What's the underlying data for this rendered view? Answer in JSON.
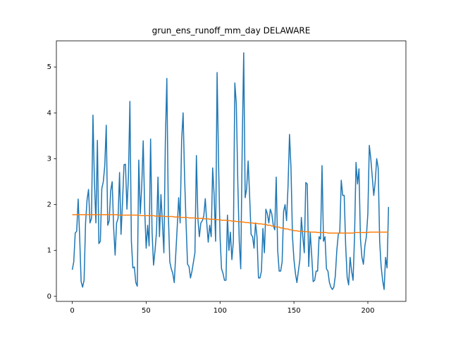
{
  "chart_data": {
    "type": "line",
    "title": "grun_ens_runoff_mm_day DELAWARE",
    "x": [
      0,
      1,
      2,
      3,
      4,
      5,
      6,
      7,
      8,
      9,
      10,
      11,
      12,
      13,
      14,
      15,
      16,
      17,
      18,
      19,
      20,
      21,
      22,
      23,
      24,
      25,
      26,
      27,
      28,
      29,
      30,
      31,
      32,
      33,
      34,
      35,
      36,
      37,
      38,
      39,
      40,
      41,
      42,
      43,
      44,
      45,
      46,
      47,
      48,
      49,
      50,
      51,
      52,
      53,
      54,
      55,
      56,
      57,
      58,
      59,
      60,
      61,
      62,
      63,
      64,
      65,
      66,
      67,
      68,
      69,
      70,
      71,
      72,
      73,
      74,
      75,
      76,
      77,
      78,
      79,
      80,
      81,
      82,
      83,
      84,
      85,
      86,
      87,
      88,
      89,
      90,
      91,
      92,
      93,
      94,
      95,
      96,
      97,
      98,
      99,
      100,
      101,
      102,
      103,
      104,
      105,
      106,
      107,
      108,
      109,
      110,
      111,
      112,
      113,
      114,
      115,
      116,
      117,
      118,
      119,
      120,
      121,
      122,
      123,
      124,
      125,
      126,
      127,
      128,
      129,
      130,
      131,
      132,
      133,
      134,
      135,
      136,
      137,
      138,
      139,
      140,
      141,
      142,
      143,
      144,
      145,
      146,
      147,
      148,
      149,
      150,
      151,
      152,
      153,
      154,
      155,
      156,
      157,
      158,
      159,
      160,
      161,
      162,
      163,
      164,
      165,
      166,
      167,
      168,
      169,
      170,
      171,
      172,
      173,
      174,
      175,
      176,
      177,
      178,
      179,
      180,
      181,
      182,
      183,
      184,
      185,
      186,
      187,
      188,
      189,
      190,
      191,
      192,
      193,
      194,
      195,
      196,
      197,
      198,
      199,
      200,
      201,
      202,
      203,
      204,
      205,
      206,
      207,
      208,
      209,
      210,
      211,
      212,
      213,
      214
    ],
    "series": [
      {
        "color": "#1f77b4",
        "values": [
          0.58,
          0.75,
          1.38,
          1.42,
          2.12,
          1.3,
          0.32,
          0.2,
          0.35,
          1.6,
          2.1,
          2.33,
          1.6,
          1.7,
          3.95,
          2.5,
          1.6,
          3.4,
          1.15,
          1.2,
          2.35,
          2.5,
          2.85,
          3.73,
          1.55,
          1.65,
          2.3,
          2.5,
          1.5,
          0.9,
          1.6,
          1.7,
          2.7,
          1.35,
          2.05,
          2.87,
          2.88,
          1.9,
          2.6,
          4.25,
          1.2,
          0.62,
          0.64,
          0.3,
          0.22,
          2.97,
          1.8,
          2.4,
          3.39,
          1.9,
          1.05,
          1.55,
          1.1,
          3.43,
          1.4,
          0.68,
          1.0,
          1.4,
          2.6,
          1.3,
          2.22,
          1.6,
          0.95,
          3.4,
          4.75,
          1.8,
          0.75,
          0.6,
          0.5,
          0.3,
          0.9,
          1.5,
          2.15,
          1.6,
          3.4,
          4.0,
          2.6,
          1.6,
          0.7,
          0.65,
          0.4,
          0.55,
          0.75,
          0.95,
          3.07,
          1.7,
          1.3,
          1.6,
          1.65,
          1.75,
          2.13,
          1.6,
          1.18,
          1.55,
          1.3,
          2.8,
          2.2,
          1.2,
          4.88,
          2.9,
          1.3,
          0.6,
          0.5,
          0.35,
          0.35,
          1.77,
          1.0,
          1.4,
          0.8,
          1.2,
          4.65,
          4.2,
          2.5,
          1.2,
          0.6,
          3.3,
          5.31,
          2.15,
          2.35,
          2.95,
          2.2,
          1.35,
          1.3,
          1.05,
          1.6,
          1.3,
          0.4,
          0.4,
          0.55,
          1.48,
          0.95,
          1.9,
          1.8,
          1.6,
          1.9,
          1.8,
          1.55,
          1.45,
          2.6,
          1.0,
          0.55,
          0.55,
          0.75,
          1.85,
          2.0,
          1.65,
          2.4,
          3.53,
          2.8,
          1.3,
          0.8,
          0.5,
          0.3,
          0.55,
          0.8,
          1.72,
          1.3,
          0.95,
          2.48,
          2.45,
          0.65,
          1.4,
          0.9,
          0.32,
          0.35,
          0.55,
          0.55,
          1.3,
          1.25,
          2.85,
          1.2,
          1.3,
          0.6,
          0.55,
          0.3,
          0.2,
          0.15,
          0.2,
          0.45,
          1.0,
          1.35,
          1.4,
          2.53,
          2.2,
          2.2,
          1.1,
          0.42,
          0.25,
          0.85,
          0.55,
          0.35,
          1.3,
          2.92,
          2.45,
          2.78,
          1.25,
          0.85,
          0.7,
          1.1,
          1.3,
          1.8,
          3.29,
          3.0,
          2.6,
          2.2,
          2.5,
          3.0,
          2.8,
          1.2,
          0.65,
          0.35,
          0.15,
          0.85,
          0.62,
          1.95
        ]
      },
      {
        "color": "#ff7f0e",
        "values": [
          1.78,
          1.78,
          1.78,
          1.78,
          1.78,
          1.78,
          1.78,
          1.78,
          1.78,
          1.78,
          1.78,
          1.78,
          1.78,
          1.78,
          1.78,
          1.78,
          1.78,
          1.78,
          1.78,
          1.78,
          1.78,
          1.78,
          1.78,
          1.78,
          1.78,
          1.78,
          1.78,
          1.78,
          1.78,
          1.78,
          1.78,
          1.77,
          1.77,
          1.77,
          1.77,
          1.77,
          1.77,
          1.77,
          1.77,
          1.77,
          1.77,
          1.77,
          1.77,
          1.77,
          1.77,
          1.77,
          1.76,
          1.76,
          1.76,
          1.76,
          1.76,
          1.76,
          1.76,
          1.76,
          1.76,
          1.76,
          1.75,
          1.75,
          1.75,
          1.75,
          1.75,
          1.75,
          1.75,
          1.74,
          1.74,
          1.74,
          1.74,
          1.74,
          1.74,
          1.73,
          1.73,
          1.73,
          1.73,
          1.73,
          1.72,
          1.72,
          1.72,
          1.72,
          1.72,
          1.71,
          1.71,
          1.71,
          1.71,
          1.71,
          1.7,
          1.7,
          1.7,
          1.7,
          1.7,
          1.69,
          1.69,
          1.69,
          1.69,
          1.68,
          1.68,
          1.68,
          1.68,
          1.67,
          1.67,
          1.67,
          1.67,
          1.66,
          1.66,
          1.66,
          1.66,
          1.65,
          1.65,
          1.65,
          1.64,
          1.64,
          1.64,
          1.63,
          1.63,
          1.63,
          1.62,
          1.62,
          1.62,
          1.61,
          1.61,
          1.61,
          1.6,
          1.6,
          1.6,
          1.59,
          1.59,
          1.59,
          1.58,
          1.58,
          1.58,
          1.57,
          1.57,
          1.57,
          1.55,
          1.55,
          1.55,
          1.53,
          1.53,
          1.53,
          1.51,
          1.51,
          1.51,
          1.49,
          1.49,
          1.49,
          1.47,
          1.47,
          1.47,
          1.45,
          1.45,
          1.45,
          1.43,
          1.43,
          1.43,
          1.42,
          1.42,
          1.42,
          1.42,
          1.41,
          1.41,
          1.41,
          1.41,
          1.4,
          1.4,
          1.4,
          1.4,
          1.4,
          1.39,
          1.39,
          1.39,
          1.39,
          1.39,
          1.39,
          1.39,
          1.38,
          1.38,
          1.38,
          1.38,
          1.38,
          1.38,
          1.38,
          1.38,
          1.38,
          1.38,
          1.38,
          1.38,
          1.38,
          1.38,
          1.38,
          1.38,
          1.38,
          1.38,
          1.39,
          1.39,
          1.39,
          1.39,
          1.39,
          1.39,
          1.39,
          1.39,
          1.39,
          1.39,
          1.4,
          1.4,
          1.4,
          1.4,
          1.4,
          1.4,
          1.4,
          1.4,
          1.4,
          1.4,
          1.4,
          1.4,
          1.4,
          1.4
        ]
      }
    ],
    "xlim": [
      -10.75,
      225.75
    ],
    "xticks": [
      0,
      50,
      100,
      150,
      200
    ],
    "ylim": [
      -0.11,
      5.57
    ],
    "yticks": [
      0,
      1,
      2,
      3,
      4,
      5
    ],
    "grid": false
  }
}
